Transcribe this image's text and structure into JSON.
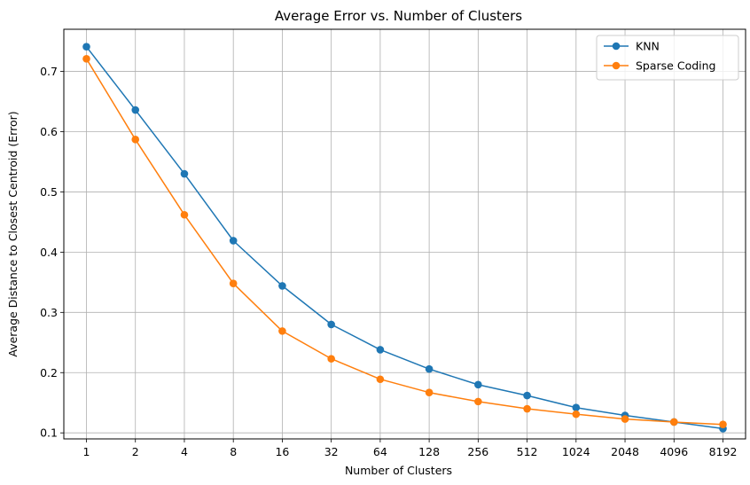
{
  "chart_data": {
    "type": "line",
    "title": "Average Error vs. Number of Clusters",
    "xlabel": "Number of Clusters",
    "ylabel": "Average Distance to Closest Centroid (Error)",
    "categories": [
      "1",
      "2",
      "4",
      "8",
      "16",
      "32",
      "64",
      "128",
      "256",
      "512",
      "1024",
      "2048",
      "4096",
      "8192"
    ],
    "yticks": [
      "0.1",
      "0.2",
      "0.3",
      "0.4",
      "0.5",
      "0.6",
      "0.7"
    ],
    "ylim": [
      0.09,
      0.77
    ],
    "grid": true,
    "legend_position": "top-right",
    "series": [
      {
        "name": "KNN",
        "color": "#1f77b4",
        "marker": "circle",
        "values": [
          0.741,
          0.636,
          0.53,
          0.419,
          0.344,
          0.28,
          0.238,
          0.206,
          0.18,
          0.162,
          0.142,
          0.129,
          0.118,
          0.107
        ]
      },
      {
        "name": "Sparse Coding",
        "color": "#ff7f0e",
        "marker": "circle",
        "values": [
          0.721,
          0.587,
          0.462,
          0.348,
          0.269,
          0.223,
          0.189,
          0.167,
          0.152,
          0.14,
          0.131,
          0.123,
          0.118,
          0.114
        ]
      }
    ]
  }
}
